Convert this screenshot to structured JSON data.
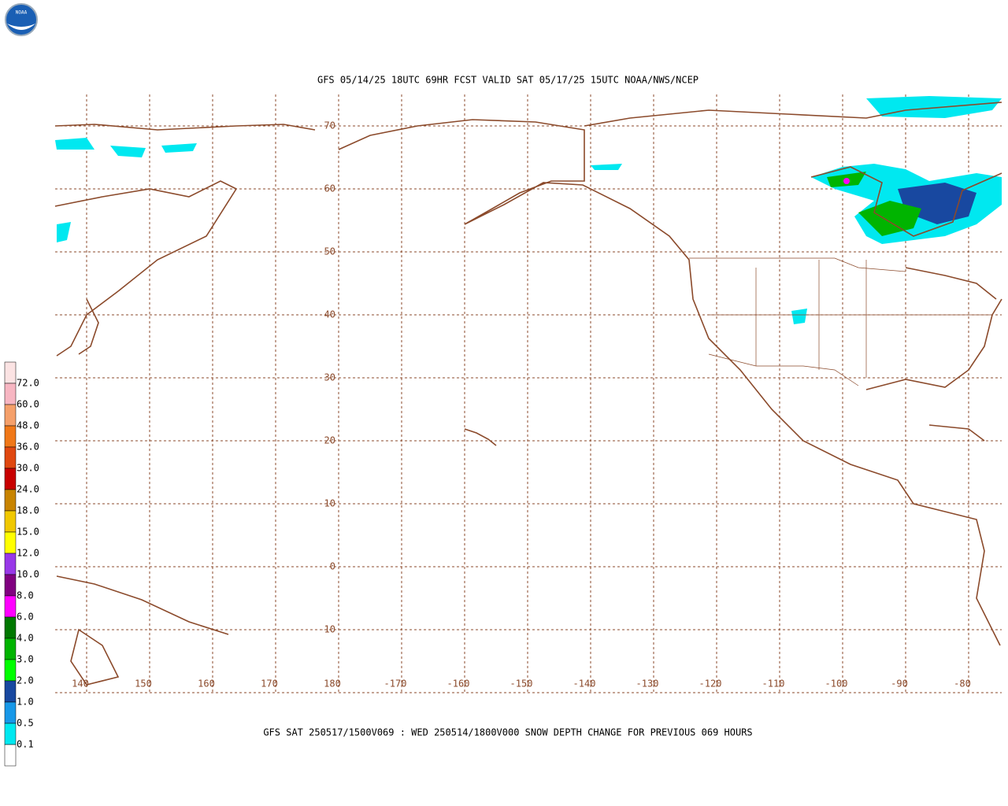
{
  "header": {
    "logo_text": "NOAA",
    "title": "GFS 05/14/25 18UTC 69HR FCST VALID SAT 05/17/25 15UTC NOAA/NWS/NCEP"
  },
  "map": {
    "lat_labels": [
      "70",
      "60",
      "50",
      "40",
      "30",
      "20",
      "10",
      "0",
      "-10"
    ],
    "lon_labels": [
      "140",
      "150",
      "160",
      "170",
      "180",
      "-170",
      "-160",
      "-150",
      "-140",
      "-130",
      "-120",
      "-110",
      "-100",
      "-90",
      "-80"
    ],
    "grid_color": "#8b4a2b"
  },
  "legend": {
    "colors": [
      "#fbe3e3",
      "#f7b6c2",
      "#f5a06a",
      "#f07818",
      "#e04810",
      "#c80000",
      "#c88400",
      "#f0c800",
      "#ffff00",
      "#9838e8",
      "#800080",
      "#ff00ff",
      "#007800",
      "#00b400",
      "#00ff00",
      "#1848a0",
      "#1898e8",
      "#00e8f0",
      "#ffffff"
    ],
    "labels": [
      "72.0",
      "60.0",
      "48.0",
      "36.0",
      "30.0",
      "24.0",
      "18.0",
      "15.0",
      "12.0",
      "10.0",
      "8.0",
      "6.0",
      "4.0",
      "3.0",
      "2.0",
      "1.0",
      "0.5",
      "0.1"
    ]
  },
  "footer": "GFS SAT 250517/1500V069 : WED 250514/1800V000 SNOW DEPTH CHANGE FOR PREVIOUS 069 HOURS"
}
